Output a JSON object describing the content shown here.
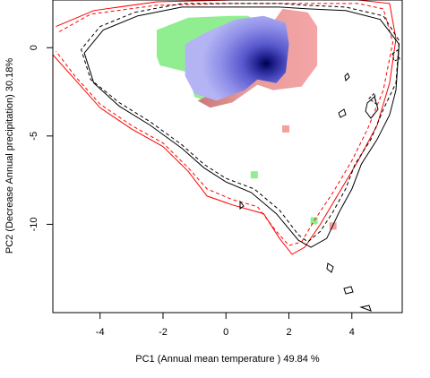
{
  "chart_data": {
    "type": "contour",
    "xlabel": "PC1 (Annual mean temperature ) 49.84 %",
    "ylabel": "PC2 (Decrease Annual precipitation) 30.18%",
    "xlim": [
      -5.5,
      5.6
    ],
    "ylim": [
      -15.0,
      2.7
    ],
    "xticks": [
      -4,
      -2,
      0,
      2,
      4
    ],
    "yticks": [
      0,
      -5,
      -10
    ],
    "grid": false,
    "legend": "none",
    "colors": {
      "green": "#90ee90",
      "red": "#f3a0a0",
      "blue_light": "#a8a8f4",
      "blue_dark": "#00004a",
      "contour_black": "#000000",
      "contour_red": "#ff0000"
    },
    "density_core": {
      "x": 1.1,
      "y": -0.9
    },
    "regions": {
      "green": [
        [
          -2.2,
          1.0
        ],
        [
          -1.2,
          1.7
        ],
        [
          0.2,
          1.8
        ],
        [
          0.7,
          1.8
        ],
        [
          1.0,
          1.5
        ],
        [
          1.6,
          1.2
        ],
        [
          1.8,
          0.5
        ],
        [
          1.3,
          -0.4
        ],
        [
          1.0,
          -2.0
        ],
        [
          0.2,
          -2.6
        ],
        [
          -0.6,
          -3.0
        ],
        [
          -1.0,
          -2.8
        ],
        [
          -1.2,
          -1.4
        ],
        [
          -2.1,
          -1.0
        ],
        [
          -2.2,
          -0.5
        ]
      ],
      "red": [
        [
          1.8,
          2.2
        ],
        [
          2.6,
          2.0
        ],
        [
          2.9,
          1.2
        ],
        [
          2.9,
          -1.0
        ],
        [
          2.4,
          -2.2
        ],
        [
          1.5,
          -2.4
        ],
        [
          1.0,
          -2.1
        ],
        [
          0.2,
          -3.1
        ],
        [
          -0.5,
          -3.4
        ],
        [
          -0.9,
          -3.0
        ],
        [
          -0.2,
          -2.4
        ],
        [
          0.9,
          -1.8
        ],
        [
          1.2,
          -0.3
        ],
        [
          1.4,
          1.2
        ]
      ],
      "blue": [
        [
          -1.3,
          0.2
        ],
        [
          -0.6,
          0.9
        ],
        [
          0.3,
          1.6
        ],
        [
          1.2,
          1.8
        ],
        [
          1.9,
          1.4
        ],
        [
          2.0,
          0.2
        ],
        [
          1.9,
          -1.4
        ],
        [
          1.6,
          -2.0
        ],
        [
          1.0,
          -1.8
        ],
        [
          0.6,
          -2.4
        ],
        [
          -0.3,
          -3.0
        ],
        [
          -1.0,
          -2.6
        ],
        [
          -1.3,
          -1.6
        ]
      ],
      "red_patches": [
        [
          1.9,
          -4.6
        ],
        [
          3.4,
          -10.1
        ]
      ],
      "green_patches": [
        [
          0.9,
          -7.2
        ],
        [
          2.8,
          -9.8
        ]
      ]
    },
    "contours": {
      "black_solid": [
        [
          -2.8,
          1.8
        ],
        [
          -1.4,
          2.3
        ],
        [
          0.2,
          2.3
        ],
        [
          1.7,
          2.3
        ],
        [
          2.6,
          2.2
        ],
        [
          3.8,
          2.1
        ],
        [
          4.9,
          1.6
        ],
        [
          5.5,
          0.2
        ],
        [
          5.4,
          -2.4
        ],
        [
          5.2,
          -3.8
        ],
        [
          4.8,
          -5.2
        ],
        [
          4.3,
          -6.6
        ],
        [
          4.0,
          -8.0
        ],
        [
          3.6,
          -9.3
        ],
        [
          3.2,
          -10.8
        ],
        [
          2.7,
          -11.3
        ],
        [
          2.3,
          -10.9
        ],
        [
          1.6,
          -9.4
        ],
        [
          0.8,
          -8.2
        ],
        [
          0.0,
          -7.6
        ],
        [
          -0.7,
          -6.8
        ],
        [
          -1.4,
          -5.7
        ],
        [
          -2.4,
          -4.4
        ],
        [
          -3.4,
          -3.3
        ],
        [
          -4.2,
          -2.0
        ],
        [
          -4.5,
          -0.3
        ],
        [
          -3.9,
          1.0
        ],
        [
          -2.8,
          1.8
        ]
      ],
      "black_dashed": [
        [
          -2.9,
          2.0
        ],
        [
          -1.4,
          2.5
        ],
        [
          0.2,
          2.5
        ],
        [
          1.7,
          2.5
        ],
        [
          2.6,
          2.4
        ],
        [
          3.8,
          2.3
        ],
        [
          5.0,
          1.8
        ],
        [
          5.5,
          0.4
        ],
        [
          5.4,
          -2.0
        ],
        [
          5.0,
          -3.5
        ],
        [
          4.6,
          -5.2
        ],
        [
          4.1,
          -6.6
        ],
        [
          3.8,
          -8.0
        ],
        [
          3.4,
          -9.3
        ],
        [
          3.0,
          -10.4
        ],
        [
          2.6,
          -11.0
        ],
        [
          2.3,
          -10.6
        ],
        [
          1.7,
          -9.2
        ],
        [
          0.9,
          -8.0
        ],
        [
          0.0,
          -7.4
        ],
        [
          -0.7,
          -6.6
        ],
        [
          -1.4,
          -5.5
        ],
        [
          -2.4,
          -4.2
        ],
        [
          -3.4,
          -3.1
        ],
        [
          -4.3,
          -1.8
        ],
        [
          -4.6,
          -0.1
        ],
        [
          -4.0,
          1.2
        ],
        [
          -2.9,
          2.0
        ]
      ],
      "red_solid": [
        [
          -5.4,
          1.2
        ],
        [
          -4.2,
          2.1
        ],
        [
          -2.2,
          2.6
        ],
        [
          0.2,
          2.7
        ],
        [
          2.2,
          2.7
        ],
        [
          4.2,
          2.7
        ],
        [
          5.2,
          2.5
        ],
        [
          5.4,
          0.5
        ],
        [
          5.2,
          -2.0
        ],
        [
          4.8,
          -4.4
        ],
        [
          4.2,
          -6.4
        ],
        [
          3.6,
          -8.2
        ],
        [
          3.0,
          -10.0
        ],
        [
          2.5,
          -11.3
        ],
        [
          2.1,
          -11.7
        ],
        [
          1.7,
          -10.8
        ],
        [
          1.2,
          -9.4
        ],
        [
          0.2,
          -8.9
        ],
        [
          -0.6,
          -8.4
        ],
        [
          -1.2,
          -7.0
        ],
        [
          -2.0,
          -5.6
        ],
        [
          -3.0,
          -4.6
        ],
        [
          -4.0,
          -3.4
        ],
        [
          -4.8,
          -1.8
        ],
        [
          -5.5,
          -0.4
        ]
      ],
      "red_dashed": [
        [
          -5.3,
          0.9
        ],
        [
          -4.3,
          1.9
        ],
        [
          -2.2,
          2.4
        ],
        [
          0.2,
          2.5
        ],
        [
          2.2,
          2.5
        ],
        [
          4.2,
          2.5
        ],
        [
          5.0,
          2.2
        ],
        [
          5.3,
          0.3
        ],
        [
          5.0,
          -2.4
        ],
        [
          4.5,
          -4.6
        ],
        [
          4.0,
          -6.4
        ],
        [
          3.4,
          -8.2
        ],
        [
          2.8,
          -9.8
        ],
        [
          2.4,
          -11.0
        ],
        [
          2.0,
          -11.2
        ],
        [
          1.6,
          -10.4
        ],
        [
          1.0,
          -9.0
        ],
        [
          0.2,
          -8.6
        ],
        [
          -0.6,
          -8.0
        ],
        [
          -1.2,
          -6.8
        ],
        [
          -2.0,
          -5.4
        ],
        [
          -3.0,
          -4.4
        ],
        [
          -4.0,
          -3.2
        ],
        [
          -4.8,
          -1.6
        ],
        [
          -5.4,
          -0.2
        ]
      ]
    }
  }
}
